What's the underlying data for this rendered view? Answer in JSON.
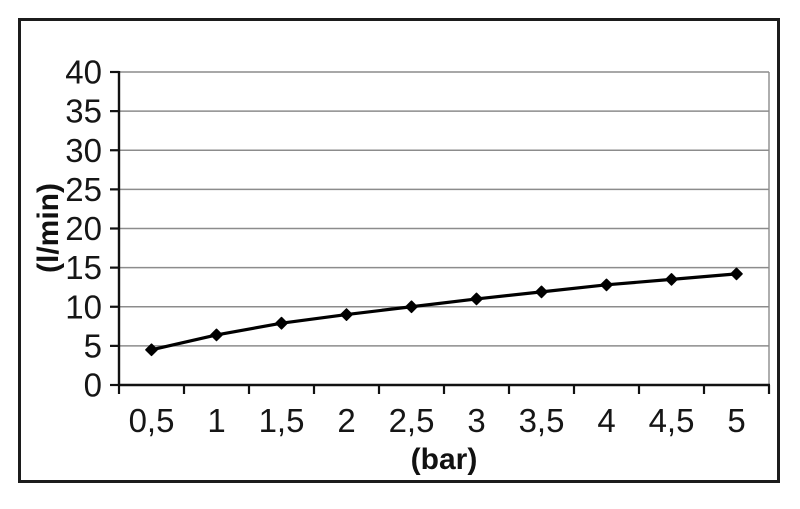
{
  "chart_data": {
    "type": "line",
    "categories": [
      "0,5",
      "1",
      "1,5",
      "2",
      "2,5",
      "3",
      "3,5",
      "4",
      "4,5",
      "5"
    ],
    "values": [
      4.5,
      6.4,
      7.9,
      9.0,
      10.0,
      11.0,
      11.9,
      12.8,
      13.5,
      14.2
    ],
    "title": "",
    "xlabel": "(bar)",
    "ylabel": "(l/min)",
    "ylim": [
      0,
      40
    ],
    "y_ticks": [
      0,
      5,
      10,
      15,
      20,
      25,
      30,
      35,
      40
    ],
    "grid": "horizontal",
    "legend": "none",
    "marker": "diamond",
    "colors": {
      "line": "#000000",
      "marker": "#000000",
      "gridline": "#8c8c8c",
      "axis": "#111111",
      "tick_text": "#161616",
      "plot_right_edge": "#8c8c8c"
    }
  }
}
